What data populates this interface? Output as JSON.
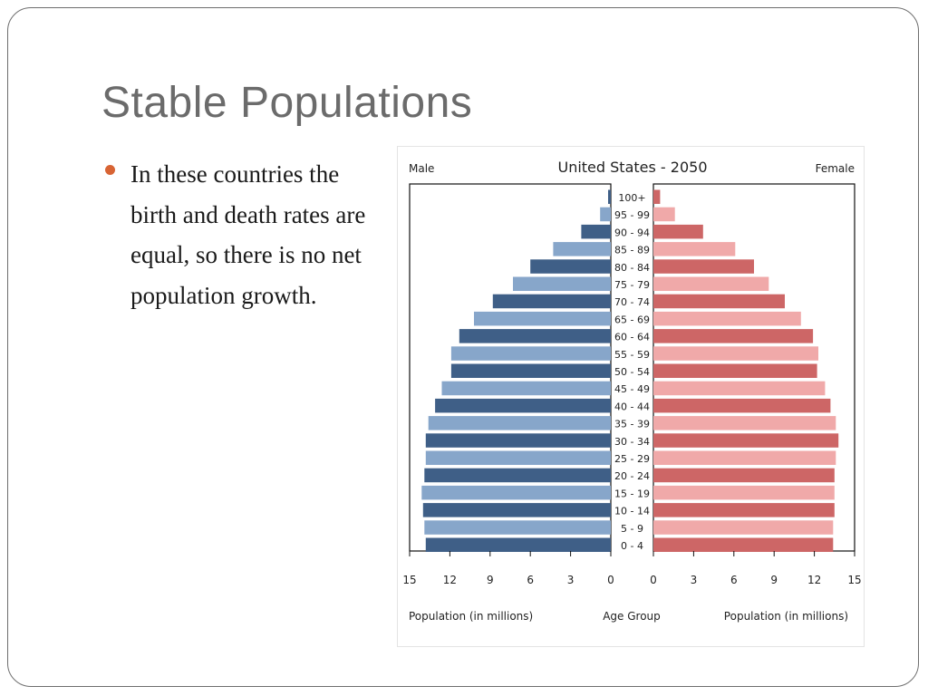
{
  "slide": {
    "title": "Stable Populations",
    "bullet_text": "In these countries the birth and death rates are equal, so there is no net population growth."
  },
  "colors": {
    "bullet": "#d86434",
    "male_dark": "#3f5f87",
    "male_light": "#87a6ca",
    "female_dark": "#cd6666",
    "female_light": "#f0a9a9"
  },
  "chart_data": {
    "type": "bar",
    "orientation": "horizontal",
    "title": "United States - 2050",
    "left_label": "Male",
    "right_label": "Female",
    "xlabel_left": "Population (in millions)",
    "xlabel_center": "Age Group",
    "xlabel_right": "Population (in millions)",
    "xlim": [
      0,
      15
    ],
    "xticks": [
      0,
      3,
      6,
      9,
      12,
      15
    ],
    "categories": [
      "100+",
      "95 - 99",
      "90 - 94",
      "85 - 89",
      "80 - 84",
      "75 - 79",
      "70 - 74",
      "65 - 69",
      "60 - 64",
      "55 - 59",
      "50 - 54",
      "45 - 49",
      "40 - 44",
      "35 - 39",
      "30 - 34",
      "25 - 29",
      "20 - 24",
      "15 - 19",
      "10 - 14",
      "5 - 9",
      "0 - 4"
    ],
    "series": [
      {
        "name": "Male",
        "values": [
          0.2,
          0.8,
          2.2,
          4.3,
          6.0,
          7.3,
          8.8,
          10.2,
          11.3,
          11.9,
          11.9,
          12.6,
          13.1,
          13.6,
          13.8,
          13.8,
          13.9,
          14.1,
          14.0,
          13.9,
          13.8
        ]
      },
      {
        "name": "Female",
        "values": [
          0.5,
          1.6,
          3.7,
          6.1,
          7.5,
          8.6,
          9.8,
          11.0,
          11.9,
          12.3,
          12.2,
          12.8,
          13.2,
          13.6,
          13.8,
          13.6,
          13.5,
          13.5,
          13.5,
          13.4,
          13.4
        ]
      }
    ],
    "grid": false,
    "legend": "none"
  }
}
